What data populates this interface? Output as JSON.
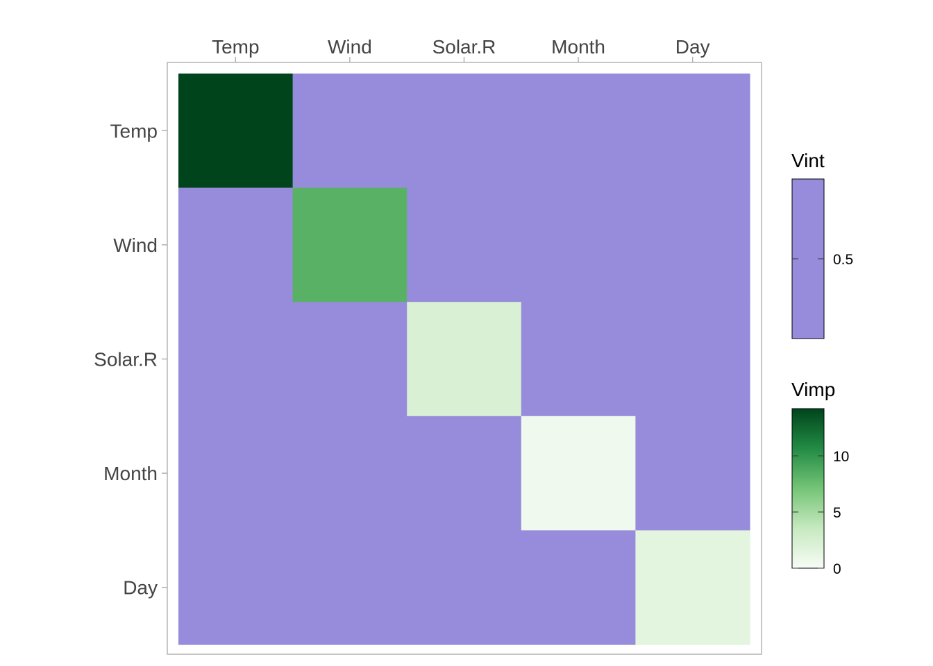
{
  "chart_data": {
    "type": "heatmap",
    "x_labels": [
      "Temp",
      "Wind",
      "Solar.R",
      "Month",
      "Day"
    ],
    "y_labels": [
      "Temp",
      "Wind",
      "Solar.R",
      "Month",
      "Day"
    ],
    "vimp": {
      "variables": [
        "Temp",
        "Wind",
        "Solar.R",
        "Month",
        "Day"
      ],
      "values": [
        14.2,
        8.3,
        2.2,
        0.5,
        1.5
      ]
    },
    "vint": {
      "value": 0.5
    },
    "vint_legend": {
      "title": "Vint",
      "break_values": [
        0.5
      ],
      "break_labels": [
        "0.5"
      ],
      "color": "#968cdb"
    },
    "vimp_legend": {
      "title": "Vimp",
      "range": [
        0,
        14.2
      ],
      "break_values": [
        0,
        5,
        10
      ],
      "break_labels": [
        "0",
        "5",
        "10"
      ],
      "colors": [
        "#f7fcf5",
        "#c7e9c0",
        "#74c476",
        "#238b45",
        "#00441b"
      ]
    },
    "panel_border_color": "#b3b3b3"
  }
}
